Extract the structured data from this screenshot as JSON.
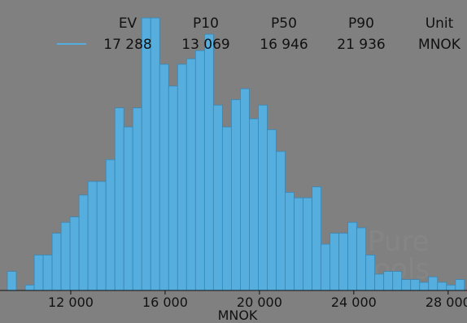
{
  "chart_data": {
    "type": "bar",
    "subtype": "histogram",
    "xlabel": "MNOK",
    "ylabel": "",
    "xlim": [
      9000,
      28800
    ],
    "ylim": [
      0,
      100
    ],
    "bin_width": 380,
    "bin_starts": [
      9310,
      9690,
      10070,
      10450,
      10830,
      11210,
      11590,
      11970,
      12350,
      12730,
      13110,
      13490,
      13870,
      14250,
      14630,
      15010,
      15390,
      15770,
      16150,
      16530,
      16910,
      17290,
      17670,
      18050,
      18430,
      18810,
      19190,
      19570,
      19950,
      20330,
      20710,
      21090,
      21470,
      21850,
      22230,
      22610,
      22990,
      23370,
      23750,
      24130,
      24510,
      24890,
      25270,
      25650,
      26030,
      26410,
      26790,
      27170,
      27550,
      27930,
      28310
    ],
    "counts": [
      7,
      0,
      2,
      13,
      13,
      21,
      25,
      27,
      35,
      40,
      40,
      48,
      67,
      60,
      67,
      100,
      100,
      83,
      75,
      83,
      85,
      88,
      94,
      68,
      60,
      70,
      74,
      63,
      68,
      59,
      51,
      36,
      34,
      34,
      38,
      17,
      21,
      21,
      25,
      23,
      13,
      6,
      7,
      7,
      4,
      4,
      3,
      5,
      3,
      2,
      4
    ],
    "xticks": [
      "12 000",
      "16 000",
      "20 000",
      "24 000",
      "28 000"
    ],
    "xtick_values": [
      12000,
      16000,
      20000,
      24000,
      28000
    ],
    "bar_color": "#55aede",
    "bar_edge_color": "#3a86b3",
    "background_color": "#808080",
    "legend": {
      "position": "top",
      "line_color": "#55aede",
      "headers": [
        "EV",
        "P10",
        "P50",
        "P90",
        "Unit"
      ],
      "values": [
        "17 288",
        "13 069",
        "16 946",
        "21 936",
        "MNOK"
      ]
    },
    "grid": false
  },
  "watermark": {
    "line1": "Pure",
    "line2": "tools"
  }
}
